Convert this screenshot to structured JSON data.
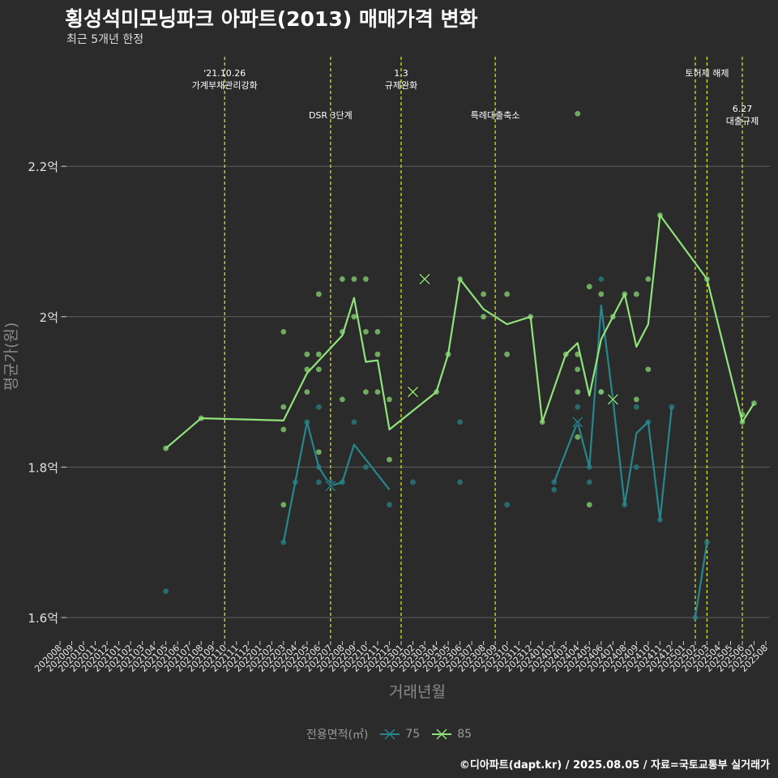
{
  "chart_data": {
    "type": "line",
    "title": "횡성석미모닝파크 아파트(2013) 매매가격 변화",
    "subtitle": "최근 5개년 한정",
    "xlabel": "거래년월",
    "ylabel": "평균가(원)",
    "ylim": [
      1.575,
      2.5
    ],
    "yticks": [
      {
        "value": 1.6,
        "label": "1.6억"
      },
      {
        "value": 1.8,
        "label": "1.8억"
      },
      {
        "value": 2.0,
        "label": "2억"
      },
      {
        "value": 2.2,
        "label": "2.2억"
      }
    ],
    "categories": [
      "202008",
      "202009",
      "202010",
      "202011",
      "202012",
      "202101",
      "202102",
      "202103",
      "202104",
      "202105",
      "202106",
      "202107",
      "202108",
      "202109",
      "202110",
      "202111",
      "202112",
      "202201",
      "202202",
      "202203",
      "202204",
      "202205",
      "202206",
      "202207",
      "202208",
      "202209",
      "202210",
      "202211",
      "202212",
      "202301",
      "202302",
      "202303",
      "202304",
      "202305",
      "202306",
      "202307",
      "202308",
      "202309",
      "202310",
      "202311",
      "202312",
      "202401",
      "202402",
      "202403",
      "202404",
      "202405",
      "202406",
      "202407",
      "202408",
      "202409",
      "202410",
      "202411",
      "202412",
      "202501",
      "202502",
      "202503",
      "202504",
      "202505",
      "202506",
      "202507",
      "202508"
    ],
    "series": [
      {
        "name": "75",
        "color": "#26878d",
        "line": [
          [
            "202203",
            1.7
          ],
          [
            "202204",
            1.78
          ],
          [
            "202205",
            1.86
          ],
          [
            "202206",
            1.8
          ],
          [
            "202207",
            1.775
          ],
          [
            "202208",
            1.78
          ],
          [
            "202209",
            1.83
          ],
          [
            "202210",
            1.81
          ],
          [
            "202211",
            1.79
          ],
          [
            "202212",
            1.77
          ],
          null,
          [
            "202402",
            1.78
          ],
          [
            "202403",
            1.82
          ],
          [
            "202404",
            1.86
          ],
          [
            "202405",
            1.8
          ],
          [
            "202406",
            2.015
          ],
          [
            "202407",
            1.89
          ],
          [
            "202408",
            1.75
          ],
          [
            "202409",
            1.845
          ],
          [
            "202410",
            1.86
          ],
          [
            "202411",
            1.73
          ],
          [
            "202412",
            1.88
          ],
          null,
          [
            "202502",
            1.6
          ],
          [
            "202503",
            1.7
          ]
        ],
        "points": [
          [
            "202105",
            1.635
          ],
          [
            "202203",
            1.7
          ],
          [
            "202204",
            1.78
          ],
          [
            "202205",
            1.86
          ],
          [
            "202206",
            1.88
          ],
          [
            "202206",
            1.8
          ],
          [
            "202206",
            1.78
          ],
          [
            "202207",
            1.78
          ],
          [
            "202208",
            1.78
          ],
          [
            "202209",
            1.86
          ],
          [
            "202210",
            1.8
          ],
          [
            "202212",
            1.75
          ],
          [
            "202302",
            1.78
          ],
          [
            "202306",
            1.86
          ],
          [
            "202306",
            1.78
          ],
          [
            "202310",
            1.75
          ],
          [
            "202402",
            1.78
          ],
          [
            "202402",
            1.77
          ],
          [
            "202404",
            1.86
          ],
          [
            "202404",
            1.88
          ],
          [
            "202405",
            1.8
          ],
          [
            "202405",
            1.78
          ],
          [
            "202406",
            2.05
          ],
          [
            "202406",
            1.9
          ],
          [
            "202408",
            1.75
          ],
          [
            "202409",
            1.88
          ],
          [
            "202409",
            1.8
          ],
          [
            "202410",
            1.86
          ],
          [
            "202411",
            1.73
          ],
          [
            "202412",
            1.88
          ],
          [
            "202502",
            1.6
          ],
          [
            "202503",
            1.7
          ]
        ],
        "cross_markers": [
          [
            "202207",
            1.775
          ],
          [
            "202404",
            1.86
          ]
        ]
      },
      {
        "name": "85",
        "color": "#90e37a",
        "line": [
          [
            "202105",
            1.825
          ],
          [
            "202108",
            1.865
          ],
          [
            "202203",
            1.862
          ],
          [
            "202205",
            1.925
          ],
          [
            "202208",
            1.975
          ],
          [
            "202209",
            2.025
          ],
          [
            "202210",
            1.94
          ],
          [
            "202211",
            1.942
          ],
          [
            "202212",
            1.85
          ],
          [
            "202304",
            1.9
          ],
          [
            "202305",
            1.95
          ],
          [
            "202306",
            2.05
          ],
          [
            "202308",
            2.01
          ],
          [
            "202310",
            1.99
          ],
          [
            "202312",
            2.0
          ],
          [
            "202401",
            1.86
          ],
          [
            "202403",
            1.95
          ],
          [
            "202404",
            1.965
          ],
          [
            "202405",
            1.895
          ],
          [
            "202406",
            1.97
          ],
          [
            "202407",
            2.0
          ],
          [
            "202408",
            2.03
          ],
          [
            "202409",
            1.96
          ],
          [
            "202410",
            1.99
          ],
          [
            "202411",
            2.135
          ],
          [
            "202503",
            2.05
          ],
          [
            "202506",
            1.86
          ],
          [
            "202507",
            1.885
          ]
        ],
        "points": [
          [
            "202105",
            1.825
          ],
          [
            "202108",
            1.865
          ],
          [
            "202203",
            1.98
          ],
          [
            "202203",
            1.88
          ],
          [
            "202203",
            1.85
          ],
          [
            "202203",
            1.75
          ],
          [
            "202205",
            1.95
          ],
          [
            "202205",
            1.93
          ],
          [
            "202205",
            1.9
          ],
          [
            "202206",
            2.03
          ],
          [
            "202206",
            1.95
          ],
          [
            "202206",
            1.93
          ],
          [
            "202206",
            1.82
          ],
          [
            "202208",
            2.05
          ],
          [
            "202208",
            1.98
          ],
          [
            "202208",
            1.89
          ],
          [
            "202209",
            2.05
          ],
          [
            "202209",
            2.0
          ],
          [
            "202210",
            2.05
          ],
          [
            "202210",
            1.98
          ],
          [
            "202210",
            1.9
          ],
          [
            "202211",
            1.98
          ],
          [
            "202211",
            1.95
          ],
          [
            "202211",
            1.9
          ],
          [
            "202212",
            1.89
          ],
          [
            "202212",
            1.81
          ],
          [
            "202304",
            1.9
          ],
          [
            "202305",
            1.95
          ],
          [
            "202306",
            2.05
          ],
          [
            "202308",
            2.03
          ],
          [
            "202308",
            2.0
          ],
          [
            "202310",
            2.03
          ],
          [
            "202310",
            1.95
          ],
          [
            "202312",
            2.0
          ],
          [
            "202401",
            1.86
          ],
          [
            "202403",
            1.95
          ],
          [
            "202404",
            2.27
          ],
          [
            "202404",
            1.95
          ],
          [
            "202404",
            1.93
          ],
          [
            "202404",
            1.9
          ],
          [
            "202404",
            1.84
          ],
          [
            "202405",
            2.04
          ],
          [
            "202405",
            1.75
          ],
          [
            "202406",
            2.03
          ],
          [
            "202406",
            1.9
          ],
          [
            "202407",
            2.0
          ],
          [
            "202408",
            2.03
          ],
          [
            "202409",
            2.03
          ],
          [
            "202409",
            1.89
          ],
          [
            "202410",
            2.05
          ],
          [
            "202410",
            1.93
          ],
          [
            "202411",
            2.135
          ],
          [
            "202503",
            2.05
          ],
          [
            "202506",
            1.87
          ],
          [
            "202506",
            1.86
          ],
          [
            "202507",
            1.885
          ]
        ],
        "cross_markers": [
          [
            "202302",
            1.9
          ],
          [
            "202303",
            2.05
          ],
          [
            "202407",
            1.89
          ]
        ]
      }
    ],
    "events": [
      {
        "month": "202110",
        "lines": [
          "'21.10.26",
          "가계부채관리강화"
        ],
        "row": 1
      },
      {
        "month": "202207",
        "lines": [
          "DSR 3단계"
        ],
        "row": 2
      },
      {
        "month": "202301",
        "lines": [
          "1.3",
          "규제완화"
        ],
        "row": 1
      },
      {
        "month": "202309",
        "lines": [
          "특례대출축소"
        ],
        "row": 2
      },
      {
        "month": "202502",
        "lines": [],
        "row": 1
      },
      {
        "month": "202503",
        "lines": [
          "토허제 해제"
        ],
        "row": 1
      },
      {
        "month": "202506",
        "lines": [
          "6.27",
          "대출규제"
        ],
        "row": 3
      }
    ],
    "event_line_color": "#d7e01c",
    "legend": {
      "title": "전용면적(㎡)",
      "items": [
        "75",
        "85"
      ],
      "position": "bottom"
    },
    "grid": true
  },
  "caption": "©디아파트(dapt.kr) / 2025.08.05 / 자료=국토교통부 실거래가"
}
